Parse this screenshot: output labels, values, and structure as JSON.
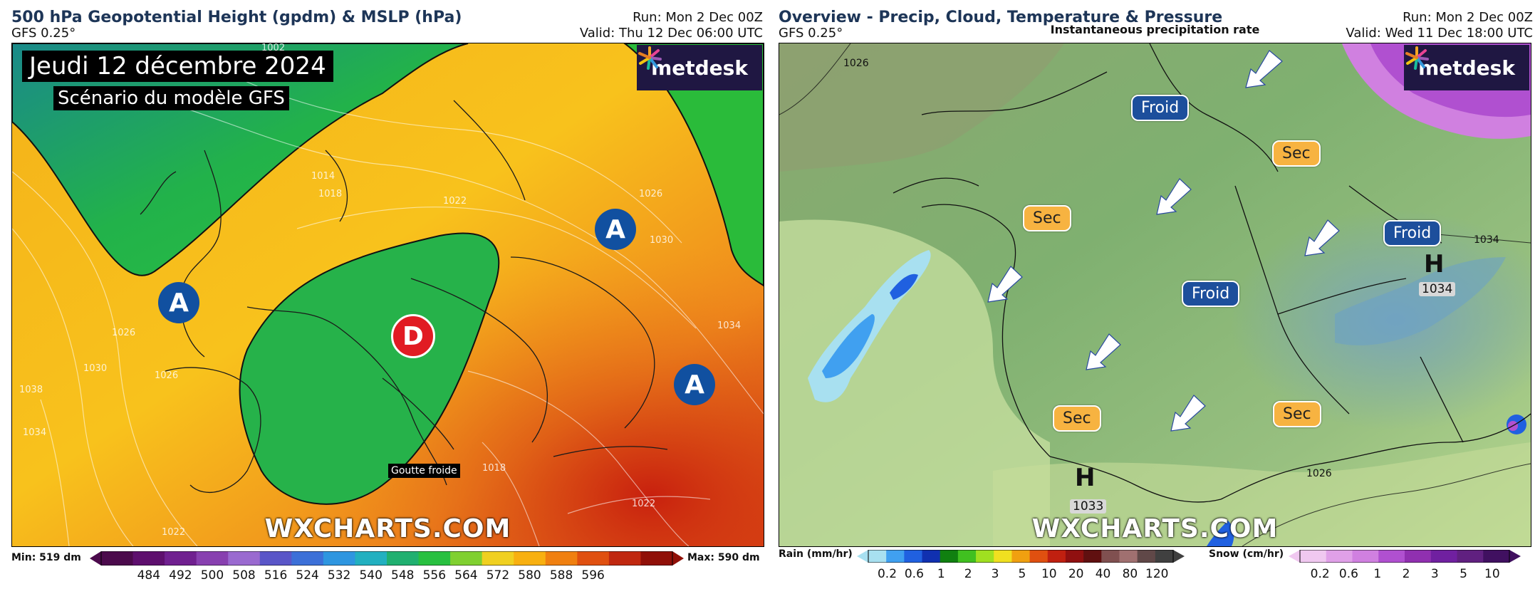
{
  "left": {
    "title": "500 hPa Geopotential Height (gpdm) & MSLP (hPa)",
    "model": "GFS 0.25°",
    "run": "Run: Mon 2 Dec 00Z",
    "valid": "Valid: Thu 12 Dec 06:00 UTC",
    "brand": "metdesk",
    "watermark": "WXCHARTS.COM",
    "date_banner": "Jeudi 12 décembre 2024",
    "scenario_banner": "Scénario du modèle GFS",
    "high_label": "A",
    "low_label": "D",
    "low_caption": "Goutte froide",
    "colorbar": {
      "min_label": "Min: 519 dm",
      "max_label": "Max: 590 dm",
      "ticks": [
        "484",
        "492",
        "500",
        "508",
        "516",
        "524",
        "532",
        "540",
        "548",
        "556",
        "564",
        "572",
        "580",
        "588",
        "596"
      ],
      "colors": [
        "#4b0a4c",
        "#5e0f6e",
        "#702090",
        "#8840b0",
        "#9a6ad0",
        "#5a56c8",
        "#3c70d8",
        "#2e96e0",
        "#22b0c0",
        "#20b070",
        "#28c040",
        "#80d030",
        "#f0d020",
        "#f8b010",
        "#f08010",
        "#e05010",
        "#c02810",
        "#901008"
      ]
    },
    "isobars": [
      "1002",
      "1014",
      "1018",
      "1022",
      "1026",
      "1030",
      "1034",
      "1038",
      "1026",
      "1030",
      "1034",
      "1018",
      "1022",
      "1026",
      "1022"
    ]
  },
  "right": {
    "title": "Overview - Precip, Cloud, Temperature & Pressure",
    "model": "GFS 0.25°",
    "subtitle": "Instantaneous precipitation rate",
    "run": "Run: Mon 2 Dec 00Z",
    "valid": "Valid: Wed 11 Dec 18:00 UTC",
    "brand": "metdesk",
    "watermark": "WXCHARTS.COM",
    "labels": {
      "froid": "Froid",
      "sec": "Sec"
    },
    "highs": [
      {
        "mark": "H",
        "value": "1034"
      },
      {
        "mark": "H",
        "value": "1033"
      }
    ],
    "isobars": [
      "1026",
      "1034",
      "1026"
    ],
    "rain_bar": {
      "label": "Rain (mm/hr)",
      "ticks": [
        "0.2",
        "0.6",
        "1",
        "2",
        "3",
        "5",
        "10",
        "20",
        "40",
        "80",
        "120"
      ],
      "colors": [
        "#a8e0f0",
        "#40a0f0",
        "#2060e0",
        "#1030b0",
        "#108010",
        "#40c020",
        "#a0e020",
        "#f0e020",
        "#f0a010",
        "#e05010",
        "#c02010",
        "#901010",
        "#601010",
        "#805050",
        "#a07070",
        "#604848",
        "#404040"
      ]
    },
    "snow_bar": {
      "label": "Snow (cm/hr)",
      "ticks": [
        "0.2",
        "0.6",
        "1",
        "2",
        "3",
        "5",
        "10"
      ],
      "colors": [
        "#f0c8f0",
        "#e0a0e8",
        "#d080e0",
        "#b050d0",
        "#9030b0",
        "#7020a0",
        "#602080",
        "#401060"
      ]
    }
  }
}
